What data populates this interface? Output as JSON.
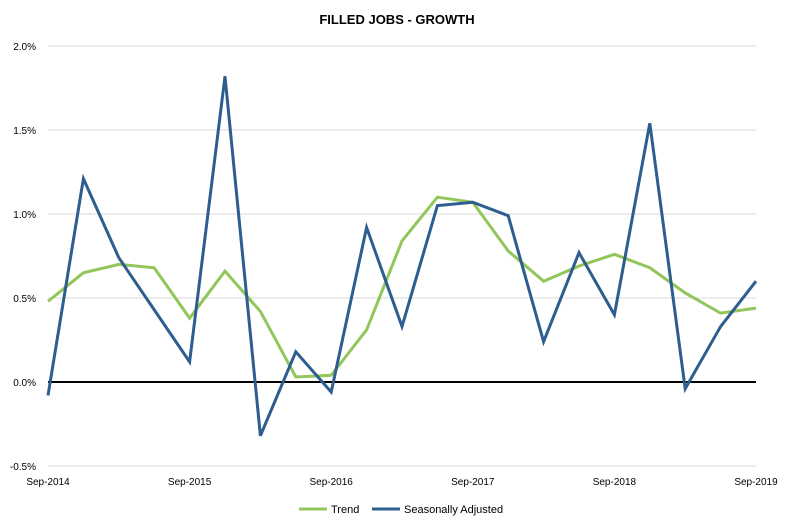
{
  "chart_data": {
    "type": "line",
    "title": "FILLED JOBS - GROWTH",
    "xlabel": "",
    "ylabel": "",
    "categories": [
      "Sep-2014",
      "Dec-2014",
      "Mar-2015",
      "Jun-2015",
      "Sep-2015",
      "Dec-2015",
      "Mar-2016",
      "Jun-2016",
      "Sep-2016",
      "Dec-2016",
      "Mar-2017",
      "Jun-2017",
      "Sep-2017",
      "Dec-2017",
      "Mar-2018",
      "Jun-2018",
      "Sep-2018",
      "Dec-2018",
      "Mar-2019",
      "Jun-2019",
      "Sep-2019"
    ],
    "x_tick_labels": [
      "Sep-2014",
      "Sep-2015",
      "Sep-2016",
      "Sep-2017",
      "Sep-2018",
      "Sep-2019"
    ],
    "y_ticks": [
      -0.5,
      0.0,
      0.5,
      1.0,
      1.5,
      2.0
    ],
    "y_tick_labels": [
      "-0.5%",
      "0.0%",
      "0.5%",
      "1.0%",
      "1.5%",
      "2.0%"
    ],
    "ylim": [
      -0.5,
      2.0
    ],
    "grid": true,
    "legend_position": "bottom",
    "series": [
      {
        "name": "Trend",
        "color": "#92c65a",
        "values": [
          0.48,
          0.65,
          0.7,
          0.68,
          0.38,
          0.66,
          0.42,
          0.03,
          0.04,
          0.31,
          0.84,
          1.1,
          1.07,
          0.78,
          0.6,
          0.69,
          0.76,
          0.68,
          0.53,
          0.41,
          0.44
        ]
      },
      {
        "name": "Seasonally Adjusted",
        "color": "#2e5d8f",
        "values": [
          -0.08,
          1.21,
          0.74,
          0.43,
          0.12,
          1.82,
          -0.32,
          0.18,
          -0.06,
          0.92,
          0.33,
          1.05,
          1.07,
          0.99,
          0.24,
          0.77,
          0.4,
          1.54,
          -0.04,
          0.33,
          0.6
        ]
      }
    ]
  }
}
